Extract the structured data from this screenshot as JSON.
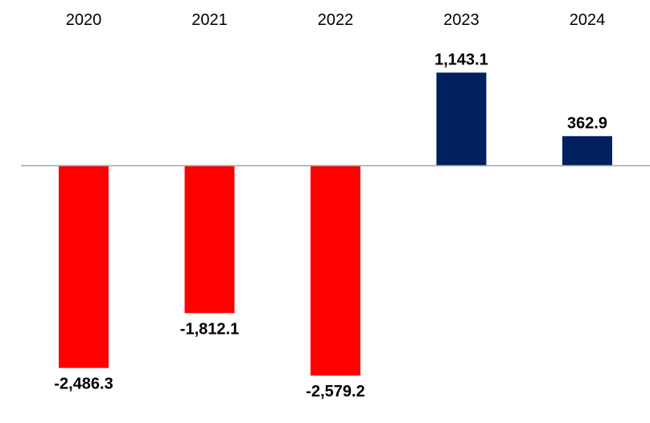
{
  "chart_data": {
    "type": "bar",
    "categories": [
      "2020",
      "2021",
      "2022",
      "2023",
      "2024"
    ],
    "values": [
      -2486.3,
      -1812.1,
      -2579.2,
      1143.1,
      362.9
    ],
    "value_labels": [
      "-2,486.3",
      "-1,812.1",
      "-2,579.2",
      "1,143.1",
      "362.9"
    ],
    "title": "",
    "xlabel": "",
    "ylabel": "",
    "ylim": [
      -2900,
      1600
    ],
    "grid": false,
    "legend": "none",
    "category_label_position": "top",
    "colors": {
      "negative": "#ff0000",
      "positive": "#002060",
      "axis": "#a6a6a6"
    }
  }
}
